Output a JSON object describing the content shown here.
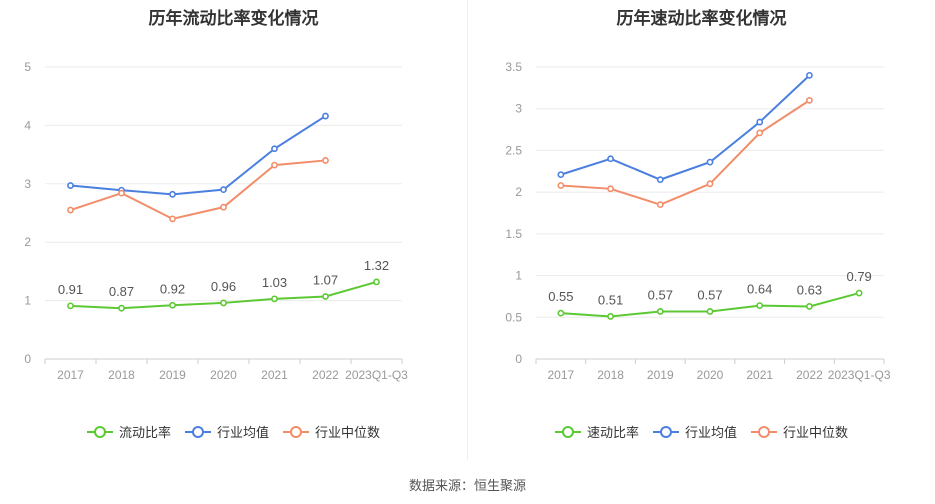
{
  "charts": [
    {
      "id": "left",
      "title": "历年流动比率变化情况",
      "chart_data": {
        "type": "line",
        "title": "历年流动比率变化情况",
        "categories": [
          "2017",
          "2018",
          "2019",
          "2020",
          "2021",
          "2022",
          "2023Q1-Q3"
        ],
        "ylim": [
          0,
          5
        ],
        "yticks": [
          "0",
          "1",
          "2",
          "3",
          "4",
          "5"
        ],
        "grid": true,
        "legend_position": "bottom",
        "series": [
          {
            "name": "流动比率",
            "color": "#5cc933",
            "labels": true,
            "values": [
              0.91,
              0.87,
              0.92,
              0.96,
              1.03,
              1.07,
              1.32
            ],
            "label_text": [
              "0.91",
              "0.87",
              "0.92",
              "0.96",
              "1.03",
              "1.07",
              "1.32"
            ]
          },
          {
            "name": "行业均值",
            "color": "#4a7fe0",
            "labels": false,
            "values": [
              2.97,
              2.89,
              2.82,
              2.9,
              3.6,
              4.16,
              null
            ]
          },
          {
            "name": "行业中位数",
            "color": "#f28d6a",
            "labels": false,
            "values": [
              2.55,
              2.84,
              2.4,
              2.6,
              3.32,
              3.4,
              null
            ]
          }
        ]
      }
    },
    {
      "id": "right",
      "title": "历年速动比率变化情况",
      "chart_data": {
        "type": "line",
        "title": "历年速动比率变化情况",
        "categories": [
          "2017",
          "2018",
          "2019",
          "2020",
          "2021",
          "2022",
          "2023Q1-Q3"
        ],
        "ylim": [
          0,
          3.5
        ],
        "yticks": [
          "0",
          "0.5",
          "1",
          "1.5",
          "2",
          "2.5",
          "3",
          "3.5"
        ],
        "grid": true,
        "legend_position": "bottom",
        "series": [
          {
            "name": "速动比率",
            "color": "#5cc933",
            "labels": true,
            "values": [
              0.55,
              0.51,
              0.57,
              0.57,
              0.64,
              0.63,
              0.79
            ],
            "label_text": [
              "0.55",
              "0.51",
              "0.57",
              "0.57",
              "0.64",
              "0.63",
              "0.79"
            ]
          },
          {
            "name": "行业均值",
            "color": "#4a7fe0",
            "labels": false,
            "values": [
              2.21,
              2.4,
              2.15,
              2.36,
              2.84,
              3.4,
              null
            ]
          },
          {
            "name": "行业中位数",
            "color": "#f28d6a",
            "labels": false,
            "values": [
              2.08,
              2.04,
              1.85,
              2.1,
              2.71,
              3.1,
              null
            ]
          }
        ]
      }
    }
  ],
  "footer": {
    "source": "数据来源：恒生聚源"
  }
}
